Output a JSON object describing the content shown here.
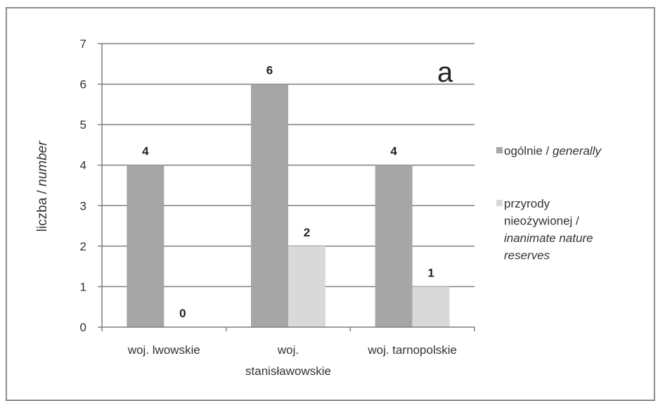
{
  "chart_data": {
    "type": "bar",
    "panel_label": "a",
    "ylabel_main": "liczba / ",
    "ylabel_italic": "number",
    "ylim": [
      0,
      7
    ],
    "yticks": [
      0,
      1,
      2,
      3,
      4,
      5,
      6,
      7
    ],
    "grid": true,
    "legend_position": "right",
    "categories": [
      [
        "woj. lwowskie"
      ],
      [
        "woj.",
        "stanisławowskie"
      ],
      [
        "woj. tarnopolskie"
      ]
    ],
    "series": [
      {
        "name_lines": [
          [
            "ogólnie / ",
            "generally"
          ]
        ],
        "color": "#a6a6a6",
        "values": [
          4,
          6,
          4
        ]
      },
      {
        "name_lines": [
          [
            "przyrody",
            ""
          ],
          [
            "nieożywionej /",
            ""
          ],
          [
            "",
            "inanimate nature"
          ],
          [
            "",
            "reserves"
          ]
        ],
        "color": "#d9d9d9",
        "values": [
          0,
          2,
          1
        ]
      }
    ]
  }
}
